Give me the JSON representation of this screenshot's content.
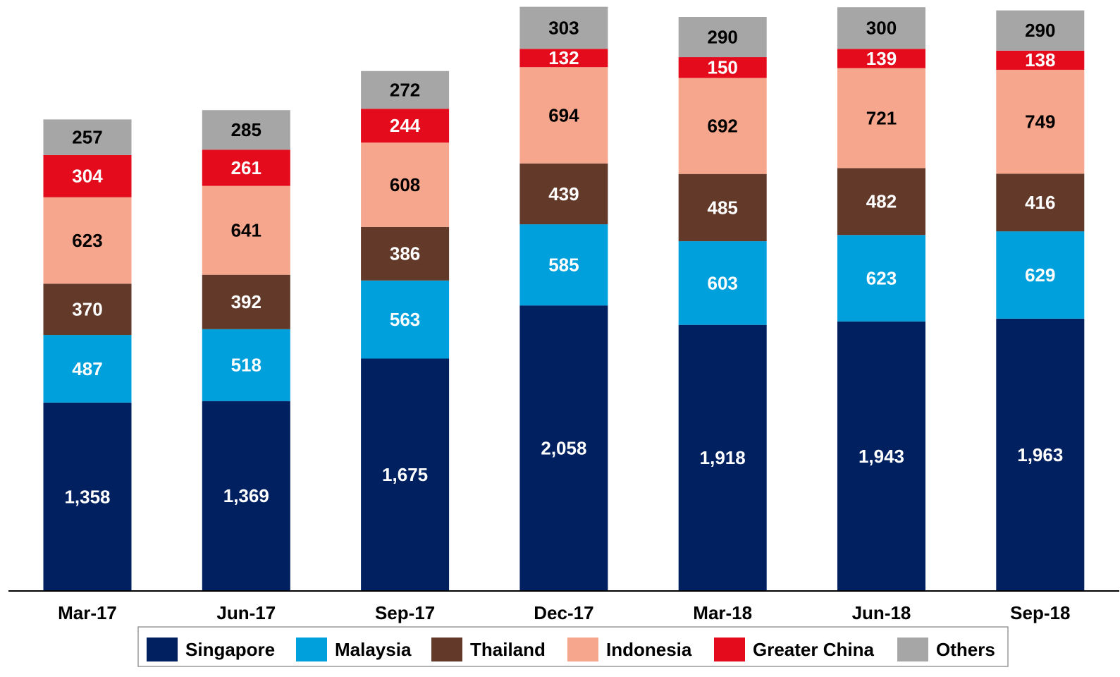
{
  "chart_data": {
    "type": "stacked_bar",
    "categories": [
      "Mar-17",
      "Jun-17",
      "Sep-17",
      "Dec-17",
      "Mar-18",
      "Jun-18",
      "Sep-18"
    ],
    "series": [
      {
        "name": "Singapore",
        "color": "#002060",
        "label_color": "#ffffff",
        "values": [
          1358,
          1369,
          1675,
          2058,
          1918,
          1943,
          1963
        ],
        "value_labels": [
          "1,358",
          "1,369",
          "1,675",
          "2,058",
          "1,918",
          "1,943",
          "1,963"
        ]
      },
      {
        "name": "Malaysia",
        "color": "#00a0dc",
        "label_color": "#ffffff",
        "values": [
          487,
          518,
          563,
          585,
          603,
          623,
          629
        ]
      },
      {
        "name": "Thailand",
        "color": "#633a2a",
        "label_color": "#ffffff",
        "values": [
          370,
          392,
          386,
          439,
          485,
          482,
          416
        ]
      },
      {
        "name": "Indonesia",
        "color": "#f5a68c",
        "label_color": "#000000",
        "values": [
          623,
          641,
          608,
          694,
          692,
          721,
          749
        ]
      },
      {
        "name": "Greater China",
        "color": "#e30b1c",
        "label_color": "#ffffff",
        "values": [
          304,
          261,
          244,
          132,
          150,
          139,
          138
        ]
      },
      {
        "name": "Others",
        "color": "#a6a6a6",
        "label_color": "#000000",
        "values": [
          257,
          285,
          272,
          303,
          290,
          300,
          290
        ]
      }
    ],
    "ylim": [
      0,
      4260
    ],
    "legend": "bottom"
  }
}
